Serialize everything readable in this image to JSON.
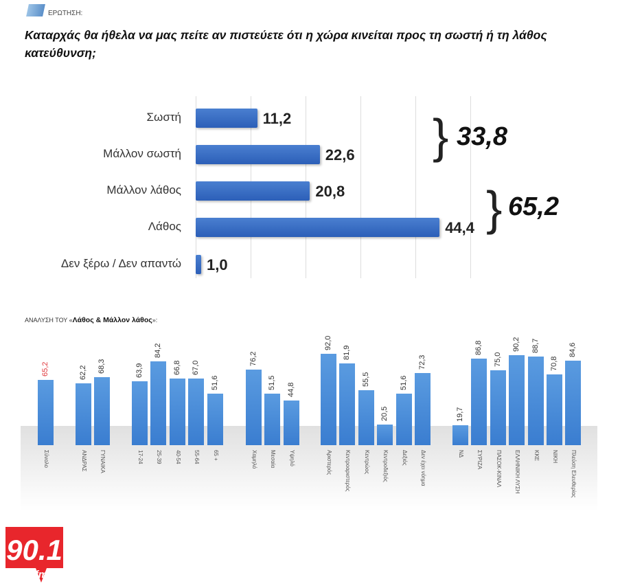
{
  "header": {
    "question_label": "ΕΡΩΤΗΣΗ:",
    "title": "Καταρχάς θα ήθελα να μας πείτε αν πιστεύετε ότι η χώρα κινείται προς τη σωστή ή τη λάθος κατεύθυνση;"
  },
  "chart_data": [
    {
      "type": "bar",
      "orientation": "horizontal",
      "categories": [
        "Σωστή",
        "Μάλλον σωστή",
        "Μάλλον λάθος",
        "Λάθος",
        "Δεν ξέρω / Δεν απαντώ"
      ],
      "values": [
        11.2,
        22.6,
        20.8,
        44.4,
        1.0
      ],
      "value_labels": [
        "11,2",
        "22,6",
        "20,8",
        "44,4",
        "1,0"
      ],
      "xlim": [
        0,
        50
      ],
      "grid": true,
      "annotations": [
        {
          "text": "33,8",
          "groups": [
            "Σωστή",
            "Μάλλον σωστή"
          ]
        },
        {
          "text": "65,2",
          "groups": [
            "Μάλλον λάθος",
            "Λάθος"
          ]
        }
      ],
      "color": "#2f63bb"
    },
    {
      "type": "bar",
      "orientation": "vertical",
      "title_prefix": "ΑΝΑΛΥΣΗ ΤΟΥ «",
      "title_bold": "Λάθος & Μάλλον λάθος",
      "title_suffix": "»:",
      "groups": [
        {
          "categories": [
            "Σύνολο"
          ],
          "values": [
            65.2
          ],
          "labels": [
            "65,2"
          ]
        },
        {
          "categories": [
            "ΑΝΔΡΑΣ",
            "ΓΥΝΑΙΚΑ"
          ],
          "values": [
            62.2,
            68.3
          ],
          "labels": [
            "62,2",
            "68,3"
          ]
        },
        {
          "categories": [
            "17-24",
            "25-39",
            "40-54",
            "55-64",
            "65 +"
          ],
          "values": [
            63.9,
            84.2,
            66.8,
            67.0,
            51.6
          ],
          "labels": [
            "63,9",
            "84,2",
            "66,8",
            "67,0",
            "51,6"
          ]
        },
        {
          "categories": [
            "Χαμηλό",
            "Μεσαία",
            "Υψηλό"
          ],
          "values": [
            76.2,
            51.5,
            44.8
          ],
          "labels": [
            "76,2",
            "51,5",
            "44,8"
          ]
        },
        {
          "categories": [
            "Αριστερός",
            "Κεντροαριστερός",
            "Κεντρώος",
            "Κεντροδεξιός",
            "Δεξιός",
            "Δεν έχει νόημα"
          ],
          "values": [
            92.0,
            81.9,
            55.5,
            20.5,
            51.6,
            72.3
          ],
          "labels": [
            "92,0",
            "81,9",
            "55,5",
            "20,5",
            "51,6",
            "72,3"
          ]
        },
        {
          "categories": [
            "ΝΔ",
            "ΣΥΡΙΖΑ",
            "ΠΑΣΟΚ-ΚΙΝΑΛ",
            "ΕΛΛΗΝΙΚΗ ΛΥΣΗ",
            "ΚΚΕ",
            "ΝΙΚΗ",
            "Πλεύση Ελευθερίας"
          ],
          "values": [
            19.7,
            86.8,
            75.0,
            90.2,
            88.7,
            70.8,
            84.6
          ],
          "labels": [
            "19,7",
            "86,8",
            "75,0",
            "90,2",
            "88,7",
            "70,8",
            "84,6"
          ]
        }
      ],
      "ylim": [
        0,
        100
      ],
      "color": "#4a8cd8",
      "highlight_color": "#e0393e"
    }
  ],
  "logo": {
    "text": "90.1",
    "sub": "fm",
    "color": "#e8262c"
  }
}
